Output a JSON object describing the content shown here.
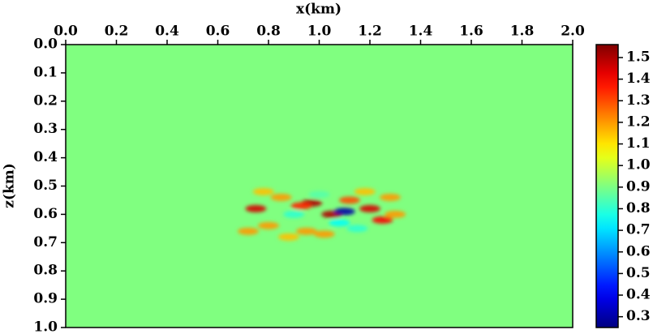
{
  "chart_data": {
    "type": "image",
    "xlabel": "x(km)",
    "ylabel": "z(km)",
    "xlim": [
      0,
      2
    ],
    "xticks": [
      {
        "value": 0,
        "label": "0.0"
      },
      0.2,
      0.4,
      0.6,
      0.8,
      {
        "value": 1,
        "label": "1.0"
      },
      1.2,
      1.4,
      1.6,
      1.8,
      {
        "value": 2,
        "label": "2.0"
      }
    ],
    "ylim": [
      0,
      1
    ],
    "yticks": [
      {
        "value": 0,
        "label": "0.0"
      },
      0.1,
      0.2,
      0.3,
      0.4,
      0.5,
      0.6,
      0.7,
      0.8,
      0.9,
      {
        "value": 1,
        "label": "1.0"
      }
    ],
    "background_value": 1,
    "background_color": "#80ff80",
    "colormap": "jet",
    "clim": [
      0.25,
      1.56
    ],
    "cticks": [
      0.3,
      0.4,
      0.5,
      0.6,
      0.7,
      0.8,
      0.9,
      {
        "value": 1,
        "label": "1.0"
      },
      1.1,
      1.2,
      1.3,
      1.4,
      1.5
    ],
    "anomalies": {
      "x": [
        0.75,
        0.8,
        0.85,
        0.9,
        0.95,
        0.97,
        1.0,
        1.05,
        1.1,
        1.12,
        1.15,
        1.2,
        1.25,
        1.28,
        0.72,
        0.88,
        1.02,
        1.18,
        0.78,
        1.08,
        1.3,
        0.93
      ],
      "z": [
        0.58,
        0.64,
        0.54,
        0.6,
        0.66,
        0.56,
        0.53,
        0.6,
        0.59,
        0.55,
        0.65,
        0.58,
        0.62,
        0.54,
        0.66,
        0.68,
        0.67,
        0.52,
        0.52,
        0.63,
        0.6,
        0.57
      ],
      "values": [
        1.45,
        1.2,
        1.2,
        0.8,
        1.2,
        1.5,
        0.85,
        1.5,
        0.3,
        1.3,
        0.8,
        1.45,
        1.4,
        1.2,
        1.2,
        1.15,
        1.2,
        1.15,
        1.15,
        0.75,
        1.2,
        1.35
      ]
    }
  }
}
